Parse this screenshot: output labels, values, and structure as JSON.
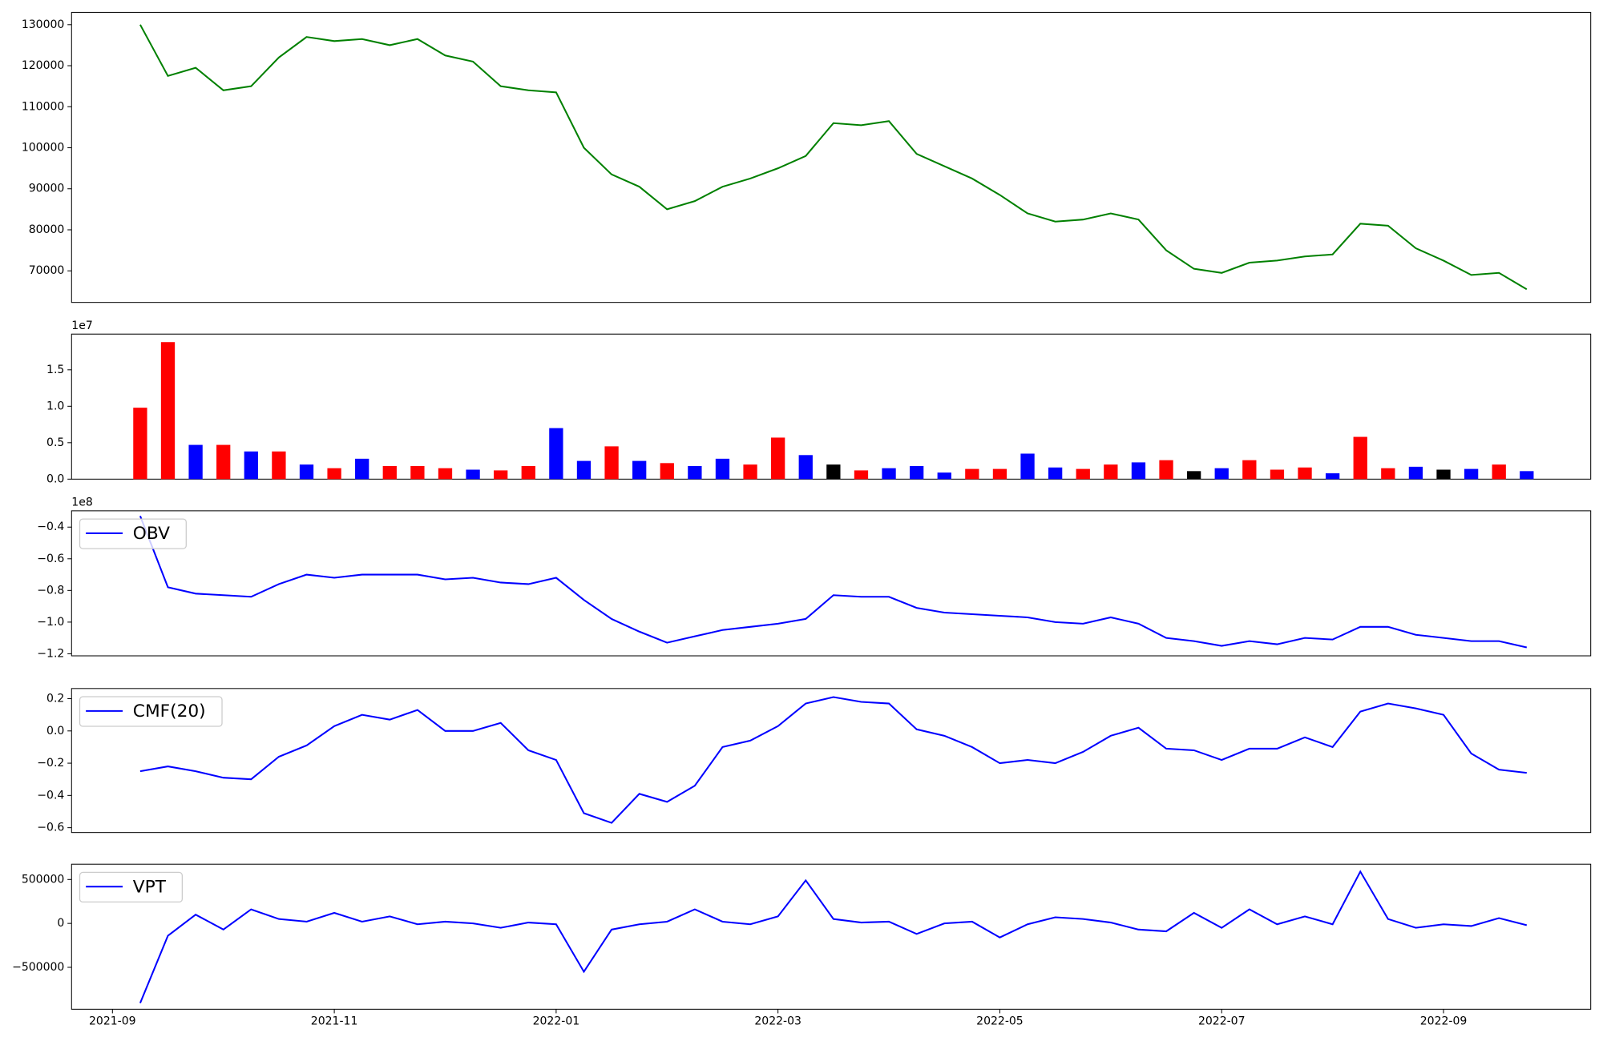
{
  "chart_data": [
    {
      "type": "line",
      "color": "green",
      "values": [
        null,
        130000,
        117500,
        119500,
        114000,
        115000,
        122000,
        127000,
        126000,
        126500,
        125000,
        126500,
        122500,
        121000,
        115000,
        114000,
        113500,
        100000,
        93500,
        90500,
        85000,
        87000,
        90500,
        92500,
        95000,
        98000,
        106000,
        105500,
        106500,
        98500,
        95500,
        92500,
        88500,
        84000,
        82000,
        82500,
        84000,
        82500,
        75000,
        70500,
        69500,
        72000,
        72500,
        73500,
        74000,
        81500,
        81000,
        75500,
        72500,
        69000,
        69500,
        65500
      ],
      "ylim": [
        62300,
        133000
      ],
      "yticks": [
        70000,
        80000,
        90000,
        100000,
        110000,
        120000,
        130000
      ]
    },
    {
      "type": "bar",
      "offset_label": "1e7",
      "values": [
        null,
        9800000,
        18800000,
        4700000,
        4700000,
        3800000,
        3800000,
        2000000,
        1500000,
        2800000,
        1800000,
        1800000,
        1500000,
        1300000,
        1200000,
        1800000,
        7000000,
        2500000,
        4500000,
        2500000,
        2200000,
        1800000,
        2800000,
        2000000,
        5700000,
        3300000,
        2000000,
        1200000,
        1500000,
        1800000,
        900000,
        1400000,
        1400000,
        3500000,
        1600000,
        1400000,
        2000000,
        2300000,
        2600000,
        1100000,
        1500000,
        2600000,
        1300000,
        1600000,
        800000,
        5800000,
        1500000,
        1700000,
        1300000,
        1400000,
        2000000,
        1100000
      ],
      "colors": [
        null,
        "red",
        "red",
        "blue",
        "red",
        "blue",
        "red",
        "blue",
        "red",
        "blue",
        "red",
        "red",
        "red",
        "blue",
        "red",
        "red",
        "blue",
        "blue",
        "red",
        "blue",
        "red",
        "blue",
        "blue",
        "red",
        "red",
        "blue",
        "black",
        "red",
        "blue",
        "blue",
        "blue",
        "red",
        "red",
        "blue",
        "blue",
        "red",
        "red",
        "blue",
        "red",
        "black",
        "blue",
        "red",
        "red",
        "red",
        "blue",
        "red",
        "red",
        "blue",
        "black",
        "blue",
        "red",
        "blue"
      ],
      "ylim": [
        0,
        19900000
      ],
      "yticks": [
        {
          "value": 0,
          "label": "0.0"
        },
        {
          "value": 5000000,
          "label": "0.5"
        },
        {
          "value": 10000000,
          "label": "1.0"
        },
        {
          "value": 15000000,
          "label": "1.5"
        }
      ]
    },
    {
      "type": "line",
      "offset_label": "1e8",
      "legend": "upper left",
      "series": [
        {
          "name": "OBV",
          "color": "blue",
          "values": [
            null,
            -33000000,
            -78000000,
            -82000000,
            -83000000,
            -84000000,
            -76000000,
            -70000000,
            -72000000,
            -70000000,
            -70000000,
            -70000000,
            -73000000,
            -72000000,
            -75000000,
            -76000000,
            -72000000,
            -86000000,
            -98000000,
            -106000000,
            -113000000,
            -109000000,
            -105000000,
            -103000000,
            -101000000,
            -98000000,
            -83000000,
            -84000000,
            -84000000,
            -91000000,
            -94000000,
            -95000000,
            -96000000,
            -97000000,
            -100000000,
            -101000000,
            -97000000,
            -101000000,
            -110000000,
            -112000000,
            -115000000,
            -112000000,
            -114000000,
            -110000000,
            -111000000,
            -103000000,
            -103000000,
            -108000000,
            -110000000,
            -112000000,
            -112000000,
            -116000000
          ]
        }
      ],
      "ylim": [
        -121300000,
        -29700000
      ],
      "yticks": [
        {
          "value": -120000000,
          "label": "−1.2"
        },
        {
          "value": -100000000,
          "label": "−1.0"
        },
        {
          "value": -80000000,
          "label": "−0.8"
        },
        {
          "value": -60000000,
          "label": "−0.6"
        },
        {
          "value": -40000000,
          "label": "−0.4"
        }
      ]
    },
    {
      "type": "line",
      "legend": "upper left",
      "series": [
        {
          "name": "CMF(20)",
          "color": "blue",
          "values": [
            null,
            -0.25,
            -0.22,
            -0.25,
            -0.29,
            -0.3,
            -0.16,
            -0.09,
            0.03,
            0.1,
            0.07,
            0.13,
            0.0,
            0.0,
            0.05,
            -0.12,
            -0.18,
            -0.51,
            -0.57,
            -0.39,
            -0.44,
            -0.34,
            -0.1,
            -0.06,
            0.03,
            0.17,
            0.21,
            0.18,
            0.17,
            0.01,
            -0.03,
            -0.1,
            -0.2,
            -0.18,
            -0.2,
            -0.13,
            -0.03,
            0.02,
            -0.11,
            -0.12,
            -0.18,
            -0.11,
            -0.11,
            -0.04,
            -0.1,
            0.12,
            0.17,
            0.14,
            0.1,
            -0.14,
            -0.24,
            -0.26
          ]
        }
      ],
      "ylim": [
        -0.63,
        0.263
      ],
      "yticks": [
        {
          "value": -0.6,
          "label": "−0.6"
        },
        {
          "value": -0.4,
          "label": "−0.4"
        },
        {
          "value": -0.2,
          "label": "−0.2"
        },
        {
          "value": 0,
          "label": "0.0"
        },
        0.2
      ]
    },
    {
      "type": "line",
      "legend": "upper left",
      "categories": [
        "2021-09",
        null,
        null,
        null,
        null,
        null,
        null,
        null,
        "2021-11",
        null,
        null,
        null,
        null,
        null,
        null,
        null,
        "2022-01",
        null,
        null,
        null,
        null,
        null,
        null,
        null,
        "2022-03",
        null,
        null,
        null,
        null,
        null,
        null,
        null,
        "2022-05",
        null,
        null,
        null,
        null,
        null,
        null,
        null,
        "2022-07",
        null,
        null,
        null,
        null,
        null,
        null,
        null,
        "2022-09",
        null,
        null,
        null
      ],
      "series": [
        {
          "name": "VPT",
          "color": "blue",
          "values": [
            null,
            -907000,
            -140000,
            100000,
            -70000,
            160000,
            50000,
            20000,
            120000,
            20000,
            80000,
            -10000,
            20000,
            0,
            -50000,
            10000,
            -10000,
            -550000,
            -70000,
            -10000,
            20000,
            160000,
            20000,
            -10000,
            80000,
            490000,
            50000,
            10000,
            20000,
            -120000,
            0,
            20000,
            -160000,
            -10000,
            70000,
            50000,
            10000,
            -70000,
            -90000,
            120000,
            -50000,
            160000,
            -10000,
            80000,
            -10000,
            590000,
            50000,
            -50000,
            -10000,
            -30000,
            60000,
            -20000
          ]
        }
      ],
      "ylim": [
        -977000,
        674000
      ],
      "yticks": [
        {
          "value": -500000,
          "label": "−500000"
        },
        0,
        500000
      ]
    }
  ]
}
